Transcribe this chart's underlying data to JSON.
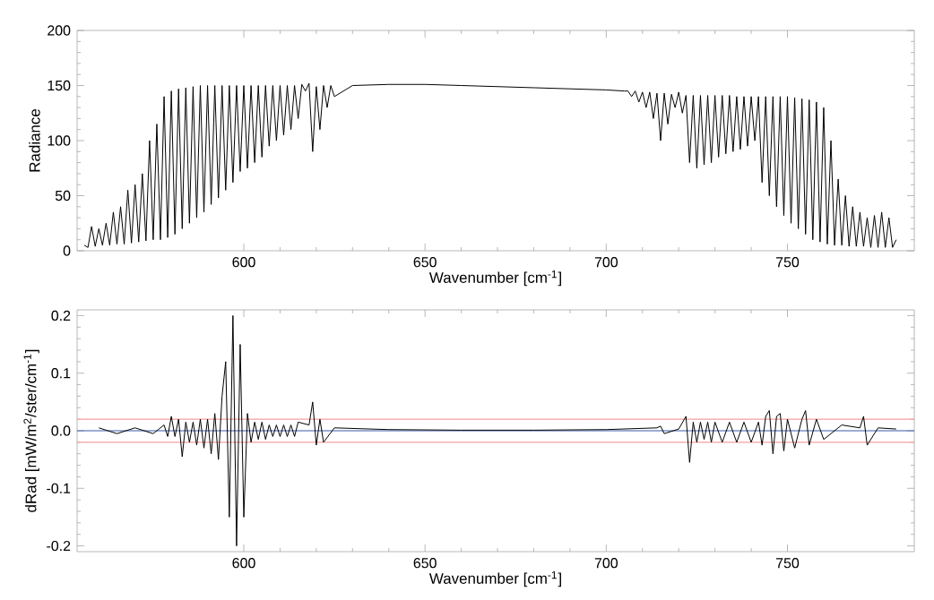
{
  "chart_data": [
    {
      "type": "line",
      "xlabel": "Wavenumber [cm$^{-1}$]",
      "ylabel": "Radiance",
      "xlim": [
        554,
        785
      ],
      "ylim": [
        0,
        200
      ],
      "xticks": [
        600,
        650,
        700,
        750
      ],
      "yticks": [
        0,
        50,
        100,
        150,
        200
      ],
      "series": [
        {
          "color": "#000000",
          "x": [
            556,
            557,
            558,
            559,
            560,
            561,
            562,
            563,
            564,
            565,
            566,
            567,
            568,
            569,
            570,
            571,
            572,
            573,
            574,
            575,
            576,
            577,
            578,
            579,
            580,
            581,
            582,
            583,
            584,
            585,
            586,
            587,
            588,
            589,
            590,
            591,
            592,
            593,
            594,
            595,
            596,
            597,
            598,
            599,
            600,
            601,
            602,
            603,
            604,
            605,
            606,
            607,
            608,
            609,
            610,
            611,
            612,
            613,
            614,
            615,
            616,
            617,
            618,
            619,
            620,
            621,
            622,
            623,
            624,
            625,
            630,
            640,
            650,
            660,
            670,
            680,
            690,
            700,
            705,
            706,
            707,
            708,
            709,
            710,
            711,
            712,
            713,
            714,
            715,
            716,
            717,
            718,
            719,
            720,
            721,
            722,
            723,
            724,
            725,
            726,
            727,
            728,
            729,
            730,
            731,
            732,
            733,
            734,
            735,
            736,
            737,
            738,
            739,
            740,
            741,
            742,
            743,
            744,
            745,
            746,
            747,
            748,
            749,
            750,
            751,
            752,
            753,
            754,
            755,
            756,
            757,
            758,
            759,
            760,
            761,
            762,
            763,
            764,
            765,
            766,
            767,
            768,
            769,
            770,
            771,
            772,
            773,
            774,
            775,
            776,
            777,
            778,
            779,
            780
          ],
          "values": [
            5,
            3,
            22,
            4,
            20,
            5,
            25,
            5,
            35,
            6,
            40,
            6,
            55,
            7,
            60,
            8,
            70,
            9,
            100,
            10,
            115,
            10,
            140,
            12,
            145,
            15,
            147,
            20,
            148,
            25,
            149,
            30,
            150,
            35,
            150,
            42,
            150,
            48,
            150,
            55,
            150,
            62,
            150,
            72,
            150,
            75,
            150,
            80,
            150,
            85,
            150,
            95,
            150,
            100,
            150,
            105,
            150,
            110,
            150,
            120,
            151,
            145,
            152,
            90,
            149,
            110,
            150,
            130,
            150,
            140,
            150,
            151,
            151,
            150,
            149,
            148,
            147,
            146,
            145,
            145,
            140,
            145,
            135,
            144,
            130,
            144,
            120,
            143,
            100,
            143,
            115,
            142,
            130,
            144,
            125,
            141,
            80,
            141,
            75,
            141,
            78,
            141,
            80,
            141,
            85,
            141,
            88,
            141,
            90,
            140,
            92,
            140,
            95,
            140,
            100,
            140,
            62,
            140,
            50,
            140,
            40,
            140,
            32,
            140,
            25,
            139,
            20,
            138,
            15,
            137,
            10,
            135,
            8,
            130,
            6,
            100,
            5,
            65,
            5,
            50,
            4,
            40,
            4,
            35,
            4,
            30,
            3,
            32,
            3,
            35,
            3,
            30,
            3,
            10
          ]
        }
      ]
    },
    {
      "type": "line",
      "xlabel": "Wavenumber [cm$^{-1}$]",
      "ylabel": "dRad [mW/m$^{2}$/ster/cm$^{-1}$]",
      "xlim": [
        554,
        785
      ],
      "ylim": [
        -0.21,
        0.21
      ],
      "xticks": [
        600,
        650,
        700,
        750
      ],
      "yticks": [
        -0.2,
        -0.1,
        {
          "value": 0,
          "label": "0.0"
        },
        0.1,
        0.2
      ],
      "ref_lines": [
        {
          "axis": "y",
          "value": 0.02,
          "color": "#f4a0a0"
        },
        {
          "axis": "y",
          "value": -0.02,
          "color": "#f4a0a0"
        },
        {
          "axis": "y",
          "value": 0,
          "color": "#3a5aa8"
        }
      ],
      "series": [
        {
          "color": "#000000",
          "x": [
            560,
            565,
            570,
            575,
            578,
            579,
            580,
            581,
            582,
            583,
            584,
            585,
            586,
            587,
            588,
            589,
            590,
            591,
            592,
            593,
            594,
            595,
            596,
            597,
            598,
            599,
            600,
            601,
            602,
            603,
            604,
            605,
            606,
            607,
            608,
            609,
            610,
            611,
            612,
            613,
            614,
            615,
            618,
            619,
            620,
            621,
            622,
            625,
            640,
            660,
            680,
            700,
            714,
            715,
            716,
            720,
            722,
            723,
            724,
            725,
            726,
            727,
            728,
            729,
            730,
            732,
            734,
            736,
            738,
            740,
            742,
            743,
            744,
            745,
            746,
            747,
            748,
            749,
            750,
            752,
            754,
            755,
            756,
            758,
            760,
            765,
            770,
            771,
            772,
            775,
            780
          ],
          "values": [
            0.005,
            -0.005,
            0.005,
            -0.005,
            0.01,
            -0.01,
            0.025,
            -0.01,
            0.02,
            -0.045,
            0.015,
            -0.02,
            0.015,
            -0.025,
            0.02,
            -0.03,
            0.02,
            -0.04,
            0.03,
            -0.05,
            0.06,
            0.12,
            -0.15,
            0.2,
            -0.2,
            0.15,
            -0.15,
            0.03,
            -0.02,
            0.015,
            -0.015,
            0.015,
            -0.015,
            0.01,
            -0.01,
            0.01,
            -0.01,
            0.01,
            -0.01,
            0.01,
            -0.01,
            0.015,
            0.01,
            0.05,
            -0.025,
            0.02,
            -0.02,
            0.005,
            0.002,
            0.001,
            0.001,
            0.002,
            0.005,
            0.008,
            -0.005,
            0.003,
            0.025,
            -0.055,
            0.015,
            -0.02,
            0.015,
            -0.015,
            0.015,
            -0.02,
            0.015,
            -0.02,
            0.015,
            -0.02,
            0.015,
            -0.02,
            0.015,
            -0.025,
            0.025,
            0.035,
            -0.04,
            0.025,
            0.03,
            -0.035,
            0.02,
            -0.03,
            0.02,
            0.035,
            -0.025,
            0.02,
            -0.015,
            0.01,
            0.005,
            0.025,
            -0.025,
            0.005,
            0.003
          ]
        }
      ]
    }
  ]
}
